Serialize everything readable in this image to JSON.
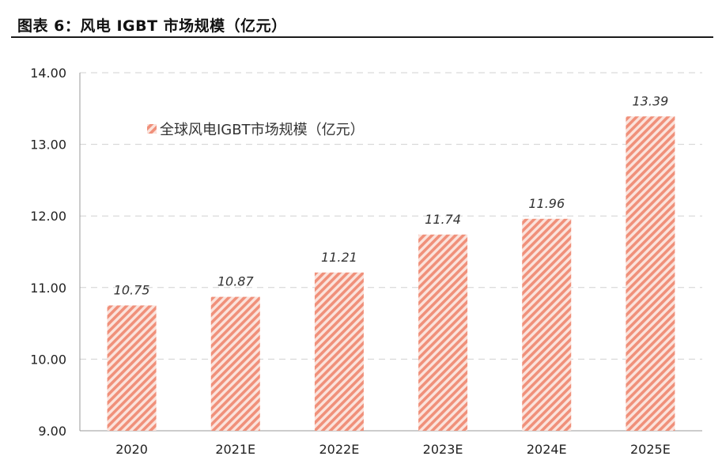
{
  "figure": {
    "title": "图表 6：风电 IGBT 市场规模（亿元）"
  },
  "chart_data": {
    "type": "bar",
    "categories": [
      "2020",
      "2021E",
      "2022E",
      "2023E",
      "2024E",
      "2025E"
    ],
    "series": [
      {
        "name": "全球风电IGBT市场规模（亿元）",
        "values": [
          10.75,
          10.87,
          11.21,
          11.74,
          11.96,
          13.39
        ]
      }
    ],
    "data_labels": [
      "10.75",
      "10.87",
      "11.21",
      "11.74",
      "11.96",
      "13.39"
    ],
    "y_ticks": [
      "9.00",
      "10.00",
      "11.00",
      "12.00",
      "13.00",
      "14.00"
    ],
    "ylim": [
      9,
      14
    ],
    "grid": "horizontal dashed",
    "legend_position": "top-left",
    "bar_color": "#f0907a",
    "bar_pattern": "diagonal hatch"
  }
}
